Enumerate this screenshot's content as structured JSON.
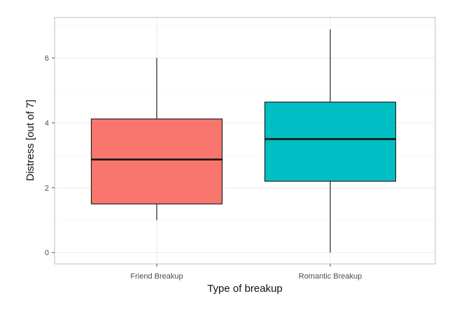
{
  "chart_data": {
    "type": "boxplot",
    "title": "",
    "xlabel": "Type of breakup",
    "ylabel": "Distress [out of 7]",
    "ylim": [
      -0.35,
      7.25
    ],
    "yticks": [
      "0",
      "2",
      "4",
      "6"
    ],
    "grid": true,
    "categories": [
      "Friend Breakup",
      "Romantic Breakup"
    ],
    "boxes": [
      {
        "category": "Friend Breakup",
        "min": 1.0,
        "q1": 1.5,
        "median": 2.87,
        "q3": 4.12,
        "max": 6.0,
        "color": "#F8766D"
      },
      {
        "category": "Romantic Breakup",
        "min": 0.0,
        "q1": 2.2,
        "median": 3.5,
        "q3": 4.64,
        "max": 6.88,
        "color": "#00BFC4"
      }
    ]
  }
}
